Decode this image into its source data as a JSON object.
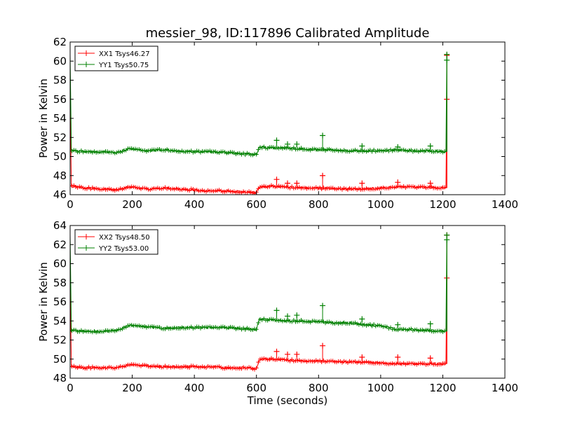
{
  "figure": {
    "title": "messier_98, ID:117896 Calibrated Amplitude"
  },
  "chart_data": [
    {
      "type": "line",
      "title": "messier_98, ID:117896 Calibrated Amplitude",
      "xlabel": "",
      "ylabel": "Power in Kelvin",
      "xlim": [
        0,
        1400
      ],
      "ylim": [
        46,
        62
      ],
      "xticks": [
        0,
        200,
        400,
        600,
        800,
        1000,
        1200,
        1400
      ],
      "yticks": [
        46,
        48,
        50,
        52,
        54,
        56,
        58,
        60,
        62
      ],
      "legend": "top-left",
      "grid": false,
      "series": [
        {
          "name": "XX1 Tsys46.27",
          "color": "#ff0000",
          "points": [
            [
              0,
              56.0
            ],
            [
              4,
              46.9
            ],
            [
              50,
              46.7
            ],
            [
              100,
              46.6
            ],
            [
              150,
              46.5
            ],
            [
              190,
              46.8
            ],
            [
              250,
              46.6
            ],
            [
              300,
              46.7
            ],
            [
              350,
              46.6
            ],
            [
              400,
              46.5
            ],
            [
              450,
              46.4
            ],
            [
              500,
              46.4
            ],
            [
              550,
              46.3
            ],
            [
              600,
              46.2
            ],
            [
              610,
              46.8
            ],
            [
              650,
              46.9
            ],
            [
              700,
              46.8
            ],
            [
              750,
              46.7
            ],
            [
              800,
              46.7
            ],
            [
              850,
              46.6
            ],
            [
              900,
              46.6
            ],
            [
              950,
              46.6
            ],
            [
              1000,
              46.7
            ],
            [
              1050,
              46.8
            ],
            [
              1100,
              46.8
            ],
            [
              1150,
              46.8
            ],
            [
              1210,
              46.7
            ],
            [
              1213,
              56.0
            ]
          ],
          "spikes": [
            [
              665,
              47.6
            ],
            [
              700,
              47.2
            ],
            [
              730,
              47.2
            ],
            [
              813,
              48.0
            ],
            [
              940,
              47.2
            ],
            [
              1055,
              47.3
            ],
            [
              1160,
              47.2
            ],
            [
              1213,
              56.0
            ],
            [
              1213,
              60.6
            ]
          ]
        },
        {
          "name": "YY1 Tsys50.75",
          "color": "#008000",
          "points": [
            [
              0,
              60.6
            ],
            [
              4,
              50.6
            ],
            [
              50,
              50.5
            ],
            [
              100,
              50.5
            ],
            [
              150,
              50.4
            ],
            [
              190,
              50.8
            ],
            [
              250,
              50.6
            ],
            [
              300,
              50.7
            ],
            [
              350,
              50.6
            ],
            [
              400,
              50.5
            ],
            [
              450,
              50.5
            ],
            [
              500,
              50.4
            ],
            [
              550,
              50.3
            ],
            [
              600,
              50.2
            ],
            [
              610,
              51.0
            ],
            [
              650,
              50.9
            ],
            [
              700,
              50.9
            ],
            [
              750,
              50.8
            ],
            [
              800,
              50.7
            ],
            [
              850,
              50.7
            ],
            [
              900,
              50.6
            ],
            [
              950,
              50.6
            ],
            [
              1000,
              50.6
            ],
            [
              1050,
              50.7
            ],
            [
              1100,
              50.6
            ],
            [
              1150,
              50.6
            ],
            [
              1210,
              50.5
            ],
            [
              1213,
              60.7
            ]
          ],
          "spikes": [
            [
              665,
              51.7
            ],
            [
              700,
              51.3
            ],
            [
              730,
              51.3
            ],
            [
              813,
              52.2
            ],
            [
              940,
              51.1
            ],
            [
              1055,
              51.0
            ],
            [
              1160,
              51.1
            ],
            [
              1213,
              60.7
            ],
            [
              1213,
              60.1
            ]
          ]
        }
      ]
    },
    {
      "type": "line",
      "title": "",
      "xlabel": "Time (seconds)",
      "ylabel": "Power in Kelvin",
      "xlim": [
        0,
        1400
      ],
      "ylim": [
        48,
        64
      ],
      "xticks": [
        0,
        200,
        400,
        600,
        800,
        1000,
        1200,
        1400
      ],
      "yticks": [
        48,
        50,
        52,
        54,
        56,
        58,
        60,
        62,
        64
      ],
      "legend": "top-left",
      "grid": false,
      "series": [
        {
          "name": "XX2 Tsys48.50",
          "color": "#ff0000",
          "points": [
            [
              0,
              58.5
            ],
            [
              4,
              49.2
            ],
            [
              50,
              49.1
            ],
            [
              100,
              49.1
            ],
            [
              150,
              49.1
            ],
            [
              190,
              49.4
            ],
            [
              250,
              49.3
            ],
            [
              300,
              49.2
            ],
            [
              350,
              49.2
            ],
            [
              400,
              49.2
            ],
            [
              450,
              49.2
            ],
            [
              500,
              49.1
            ],
            [
              550,
              49.1
            ],
            [
              600,
              49.0
            ],
            [
              610,
              50.0
            ],
            [
              650,
              50.0
            ],
            [
              700,
              49.9
            ],
            [
              750,
              49.8
            ],
            [
              800,
              49.8
            ],
            [
              850,
              49.7
            ],
            [
              900,
              49.7
            ],
            [
              950,
              49.7
            ],
            [
              1000,
              49.6
            ],
            [
              1050,
              49.5
            ],
            [
              1100,
              49.5
            ],
            [
              1150,
              49.5
            ],
            [
              1210,
              49.5
            ],
            [
              1213,
              58.5
            ]
          ],
          "spikes": [
            [
              665,
              50.8
            ],
            [
              700,
              50.5
            ],
            [
              730,
              50.5
            ],
            [
              813,
              51.4
            ],
            [
              940,
              50.2
            ],
            [
              1055,
              50.2
            ],
            [
              1160,
              50.1
            ],
            [
              1213,
              58.5
            ],
            [
              1213,
              63.0
            ]
          ]
        },
        {
          "name": "YY2 Tsys53.00",
          "color": "#008000",
          "points": [
            [
              0,
              63.0
            ],
            [
              4,
              53.0
            ],
            [
              50,
              52.9
            ],
            [
              100,
              52.9
            ],
            [
              150,
              53.0
            ],
            [
              190,
              53.5
            ],
            [
              250,
              53.4
            ],
            [
              300,
              53.2
            ],
            [
              350,
              53.3
            ],
            [
              400,
              53.3
            ],
            [
              450,
              53.3
            ],
            [
              500,
              53.3
            ],
            [
              550,
              53.2
            ],
            [
              600,
              53.1
            ],
            [
              610,
              54.2
            ],
            [
              650,
              54.1
            ],
            [
              700,
              54.0
            ],
            [
              750,
              54.0
            ],
            [
              800,
              53.9
            ],
            [
              850,
              53.8
            ],
            [
              900,
              53.8
            ],
            [
              950,
              53.6
            ],
            [
              1000,
              53.5
            ],
            [
              1050,
              53.1
            ],
            [
              1100,
              53.1
            ],
            [
              1150,
              53.0
            ],
            [
              1210,
              52.9
            ],
            [
              1213,
              63.0
            ]
          ],
          "spikes": [
            [
              665,
              55.1
            ],
            [
              700,
              54.5
            ],
            [
              730,
              54.6
            ],
            [
              813,
              55.6
            ],
            [
              940,
              54.2
            ],
            [
              1055,
              53.6
            ],
            [
              1160,
              53.7
            ],
            [
              1213,
              63.0
            ],
            [
              1213,
              62.5
            ]
          ]
        }
      ]
    }
  ]
}
